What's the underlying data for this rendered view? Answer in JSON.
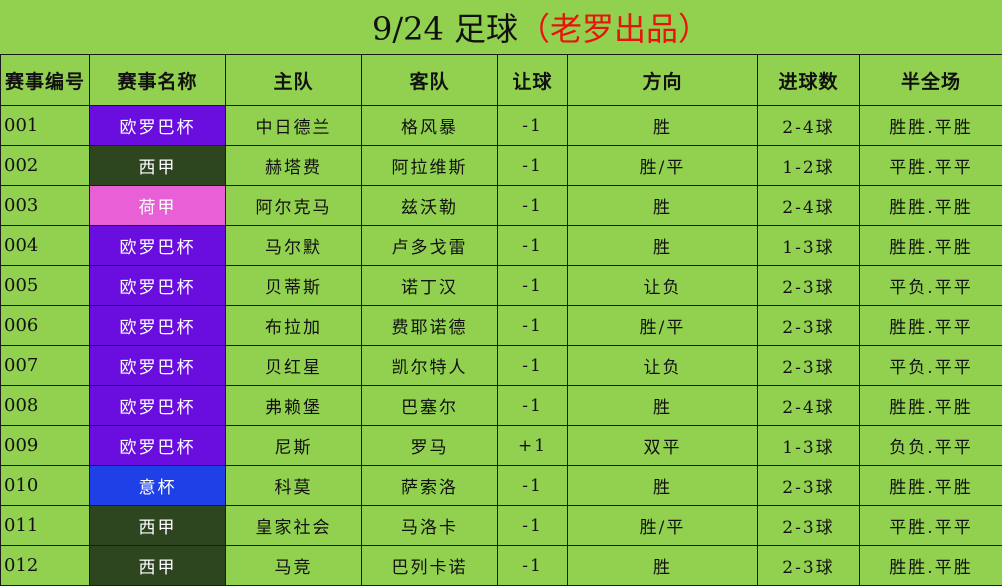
{
  "title": {
    "main": "9/24 足球",
    "author": "（老罗出品）"
  },
  "headers": [
    "赛事编号",
    "赛事名称",
    "主队",
    "客队",
    "让球",
    "方向",
    "进球数",
    "半全场"
  ],
  "league_colors": {
    "欧罗巴杯": "#6a0ee0",
    "西甲": "#2e4620",
    "荷甲": "#e85fd6",
    "意杯": "#1f40e6"
  },
  "rows": [
    [
      "001",
      "欧罗巴杯",
      "中日德兰",
      "格风暴",
      "-1",
      "胜",
      "2-4球",
      "胜胜.平胜"
    ],
    [
      "002",
      "西甲",
      "赫塔费",
      "阿拉维斯",
      "-1",
      "胜/平",
      "1-2球",
      "平胜.平平"
    ],
    [
      "003",
      "荷甲",
      "阿尔克马",
      "兹沃勒",
      "-1",
      "胜",
      "2-4球",
      "胜胜.平胜"
    ],
    [
      "004",
      "欧罗巴杯",
      "马尔默",
      "卢多戈雷",
      "-1",
      "胜",
      "1-3球",
      "胜胜.平胜"
    ],
    [
      "005",
      "欧罗巴杯",
      "贝蒂斯",
      "诺丁汉",
      "-1",
      "让负",
      "2-3球",
      "平负.平平"
    ],
    [
      "006",
      "欧罗巴杯",
      "布拉加",
      "费耶诺德",
      "-1",
      "胜/平",
      "2-3球",
      "胜胜.平平"
    ],
    [
      "007",
      "欧罗巴杯",
      "贝红星",
      "凯尔特人",
      "-1",
      "让负",
      "2-3球",
      "平负.平平"
    ],
    [
      "008",
      "欧罗巴杯",
      "弗赖堡",
      "巴塞尔",
      "-1",
      "胜",
      "2-4球",
      "胜胜.平胜"
    ],
    [
      "009",
      "欧罗巴杯",
      "尼斯",
      "罗马",
      "+1",
      "双平",
      "1-3球",
      "负负.平平"
    ],
    [
      "010",
      "意杯",
      "科莫",
      "萨索洛",
      "-1",
      "胜",
      "2-3球",
      "胜胜.平胜"
    ],
    [
      "011",
      "西甲",
      "皇家社会",
      "马洛卡",
      "-1",
      "胜/平",
      "2-3球",
      "平胜.平平"
    ],
    [
      "012",
      "西甲",
      "马竞",
      "巴列卡诺",
      "-1",
      "胜",
      "2-3球",
      "胜胜.平胜"
    ]
  ]
}
